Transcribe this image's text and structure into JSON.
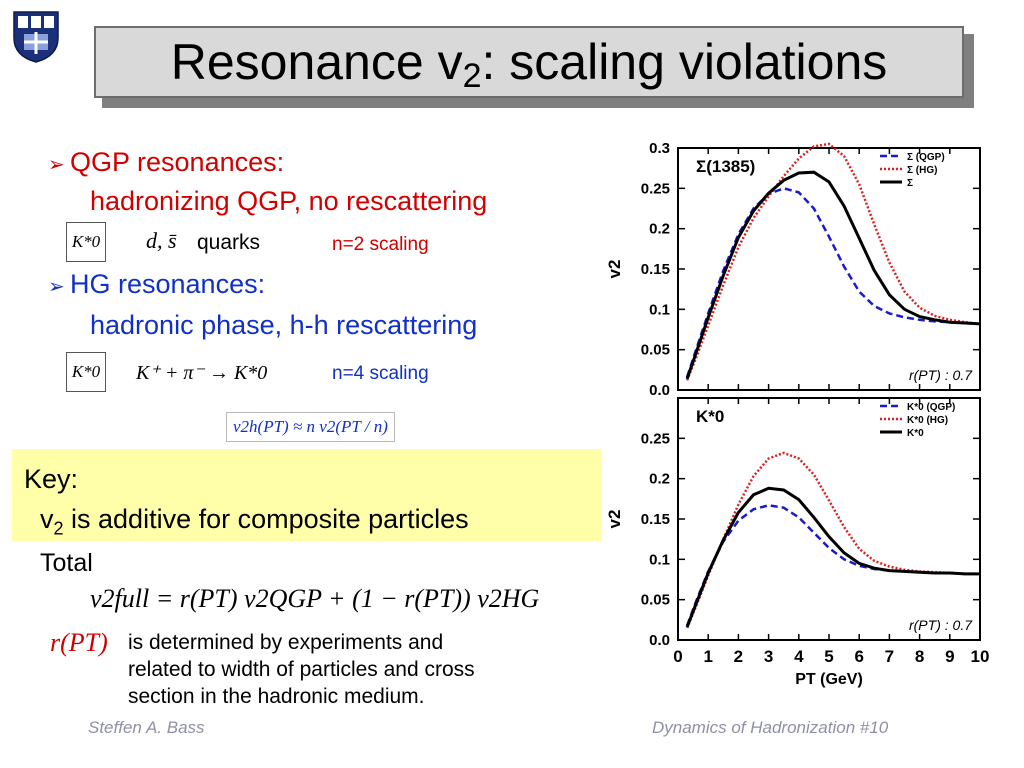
{
  "slide": {
    "title_main": "Resonance v",
    "title_sub": "2",
    "title_rest": ": scaling violations",
    "bullet1_head": "QGP resonances:",
    "bullet1_sub": "hadronizing QGP, no rescattering",
    "k0_box": "K*0",
    "quarks_math": "d, s̄",
    "quarks_label": "quarks",
    "n2_label": "n=2 scaling",
    "bullet2_head": "HG resonances:",
    "bullet2_sub": "hadronic phase, h-h rescattering",
    "reaction": "K⁺ + π⁻ → K*0",
    "n4_label": "n=4 scaling",
    "scaling_formula": "v2h(PT) ≈ n v2(PT / n)",
    "key_label": "Key:",
    "key_text_pre": "v",
    "key_text_sub": "2",
    "key_text_post": " is additive for composite particles",
    "total_label": "Total",
    "total_formula": "v2full = r(PT) v2QGP + (1 − r(PT)) v2HG",
    "r_label": "r(PT)",
    "desc_line1": "is determined by experiments and",
    "desc_line2": "related to width of particles and cross",
    "desc_line3": "section in the hadronic medium.",
    "footer_left": "Steffen A. Bass",
    "footer_right": "Dynamics of Hadronization  #10"
  },
  "colors": {
    "red": "#d10000",
    "blue": "#1030c8",
    "key_bg": "#ffffaa",
    "qgp": "#1a1ad0",
    "hg": "#e02020",
    "total": "#000000"
  },
  "chart_data": [
    {
      "type": "line",
      "panel_label": "Σ(1385)",
      "ylabel": "v2",
      "annotation": "r(PT) : 0.7",
      "ylim": [
        0,
        0.3
      ],
      "yticks": [
        "0.0",
        "0.05",
        "0.1",
        "0.15",
        "0.2",
        "0.25",
        "0.3"
      ],
      "xlim": [
        0,
        10
      ],
      "legend": [
        "Σ (QGP)",
        "Σ (HG)",
        "Σ"
      ],
      "legend_placement": "top-right",
      "x": [
        0.3,
        0.6,
        1.0,
        1.5,
        2.0,
        2.5,
        3.0,
        3.5,
        4.0,
        4.5,
        5.0,
        5.5,
        6.0,
        6.5,
        7.0,
        7.5,
        8.0,
        8.5,
        9.0,
        9.5,
        10.0
      ],
      "series": [
        {
          "name": "Σ (QGP)",
          "values": [
            0.016,
            0.05,
            0.095,
            0.148,
            0.193,
            0.225,
            0.243,
            0.25,
            0.245,
            0.225,
            0.19,
            0.153,
            0.122,
            0.104,
            0.095,
            0.09,
            0.087,
            0.085,
            0.084,
            0.083,
            0.082
          ]
        },
        {
          "name": "Σ (HG)",
          "values": [
            0.012,
            0.04,
            0.08,
            0.13,
            0.177,
            0.213,
            0.24,
            0.265,
            0.287,
            0.302,
            0.305,
            0.29,
            0.255,
            0.205,
            0.158,
            0.122,
            0.102,
            0.092,
            0.087,
            0.084,
            0.082
          ]
        },
        {
          "name": "Σ",
          "values": [
            0.014,
            0.046,
            0.09,
            0.142,
            0.189,
            0.222,
            0.244,
            0.26,
            0.269,
            0.27,
            0.258,
            0.228,
            0.188,
            0.148,
            0.118,
            0.1,
            0.091,
            0.087,
            0.084,
            0.083,
            0.082
          ]
        }
      ]
    },
    {
      "type": "line",
      "panel_label": "K*0",
      "ylabel": "v2",
      "xlabel": "PT (GeV)",
      "annotation": "r(PT) : 0.7",
      "ylim": [
        0,
        0.3
      ],
      "yticks": [
        "0.0",
        "0.05",
        "0.1",
        "0.15",
        "0.2",
        "0.25"
      ],
      "xlim": [
        0,
        10
      ],
      "xticks": [
        "0",
        "1",
        "2",
        "3",
        "4",
        "5",
        "6",
        "7",
        "8",
        "9",
        "10"
      ],
      "legend": [
        "K*0 (QGP)",
        "K*0 (HG)",
        "K*0"
      ],
      "legend_placement": "top-right",
      "x": [
        0.3,
        0.6,
        1.0,
        1.5,
        2.0,
        2.5,
        3.0,
        3.5,
        4.0,
        4.5,
        5.0,
        5.5,
        6.0,
        6.5,
        7.0,
        7.5,
        8.0,
        8.5,
        9.0,
        9.5,
        10.0
      ],
      "series": [
        {
          "name": "K*0 (QGP)",
          "values": [
            0.018,
            0.048,
            0.085,
            0.122,
            0.148,
            0.162,
            0.167,
            0.164,
            0.152,
            0.133,
            0.114,
            0.1,
            0.092,
            0.088,
            0.086,
            0.085,
            0.084,
            0.083,
            0.083,
            0.082,
            0.082
          ]
        },
        {
          "name": "K*0 (HG)",
          "values": [
            0.015,
            0.042,
            0.08,
            0.125,
            0.168,
            0.203,
            0.225,
            0.232,
            0.225,
            0.205,
            0.173,
            0.14,
            0.113,
            0.098,
            0.091,
            0.087,
            0.085,
            0.084,
            0.083,
            0.082,
            0.082
          ]
        },
        {
          "name": "K*0",
          "values": [
            0.016,
            0.045,
            0.083,
            0.124,
            0.158,
            0.18,
            0.188,
            0.186,
            0.174,
            0.152,
            0.128,
            0.108,
            0.095,
            0.089,
            0.086,
            0.085,
            0.084,
            0.083,
            0.083,
            0.082,
            0.082
          ]
        }
      ]
    }
  ]
}
